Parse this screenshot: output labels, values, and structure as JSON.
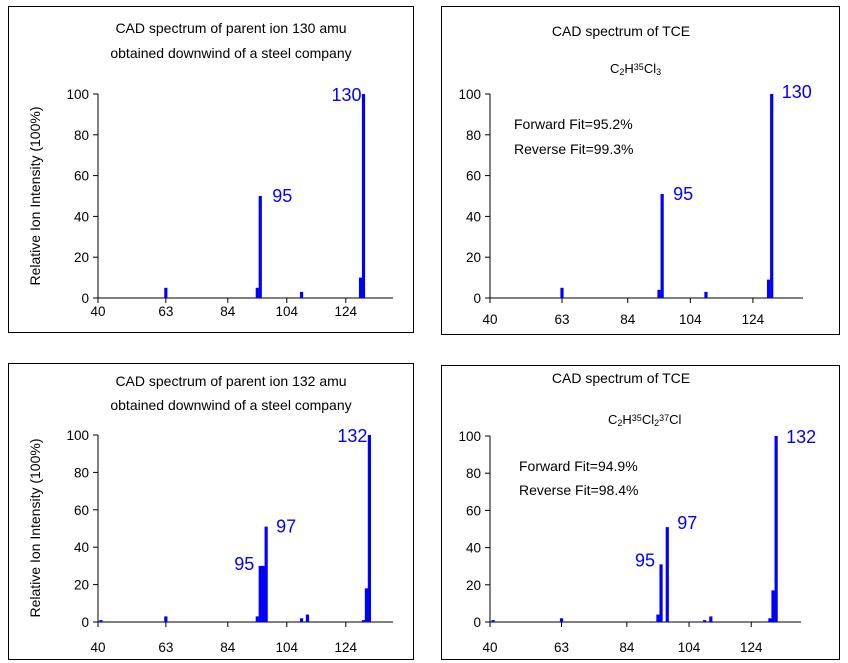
{
  "colors": {
    "bar": "#0000ff",
    "peak_label": "#0000ff",
    "axis": "#000000"
  },
  "chart_data": [
    {
      "type": "bar",
      "title": "CAD spectrum of parent ion 130 amu obtained downwind of a steel company",
      "title_lines": [
        "CAD spectrum of parent ion 130 amu",
        "obtained downwind of a steel company"
      ],
      "ylabel": "Relative Ion Intensity (100%)",
      "xlim": [
        40,
        140
      ],
      "ylim": [
        0,
        100
      ],
      "xticks": [
        40,
        63,
        84,
        104,
        124
      ],
      "yticks": [
        0,
        20,
        40,
        60,
        80,
        100
      ],
      "bars": [
        {
          "x": 63,
          "y": 5
        },
        {
          "x": 94,
          "y": 5
        },
        {
          "x": 95,
          "y": 50
        },
        {
          "x": 109,
          "y": 3
        },
        {
          "x": 129,
          "y": 10
        },
        {
          "x": 130,
          "y": 100
        }
      ],
      "peak_labels": [
        {
          "text": "130",
          "x": 130,
          "y": 100
        },
        {
          "text": "95",
          "x": 95,
          "y": 50
        }
      ]
    },
    {
      "type": "bar",
      "title": "CAD spectrum of TCE",
      "formula": {
        "parts": [
          [
            "C",
            ""
          ],
          [
            "2",
            "sub"
          ],
          [
            "H",
            ""
          ],
          [
            "35",
            "sup"
          ],
          [
            "Cl",
            ""
          ],
          [
            "3",
            "sub"
          ]
        ]
      },
      "annotations": [
        "Forward Fit=95.2%",
        "Reverse Fit=99.3%"
      ],
      "xlim": [
        40,
        140
      ],
      "ylim": [
        0,
        100
      ],
      "xticks": [
        40,
        63,
        84,
        104,
        124
      ],
      "yticks": [
        0,
        20,
        40,
        60,
        80,
        100
      ],
      "bars": [
        {
          "x": 63,
          "y": 5
        },
        {
          "x": 94,
          "y": 4
        },
        {
          "x": 95,
          "y": 51
        },
        {
          "x": 109,
          "y": 3
        },
        {
          "x": 129,
          "y": 9
        },
        {
          "x": 130,
          "y": 100
        }
      ],
      "peak_labels": [
        {
          "text": "130",
          "x": 130,
          "y": 100
        },
        {
          "text": "95",
          "x": 95,
          "y": 51
        }
      ]
    },
    {
      "type": "bar",
      "title": "CAD spectrum of parent ion 132 amu obtained downwind of a steel company",
      "title_lines": [
        "CAD spectrum of parent ion 132 amu",
        "obtained downwind of a steel company"
      ],
      "ylabel": "Relative Ion Intensity (100%)",
      "xlim": [
        40,
        140
      ],
      "ylim": [
        0,
        100
      ],
      "xticks": [
        40,
        63,
        84,
        104,
        124
      ],
      "yticks": [
        0,
        20,
        40,
        60,
        80,
        100
      ],
      "bars": [
        {
          "x": 41,
          "y": 1
        },
        {
          "x": 63,
          "y": 3
        },
        {
          "x": 94,
          "y": 3
        },
        {
          "x": 95,
          "y": 30
        },
        {
          "x": 96,
          "y": 30
        },
        {
          "x": 97,
          "y": 51
        },
        {
          "x": 109,
          "y": 2
        },
        {
          "x": 111,
          "y": 4
        },
        {
          "x": 130,
          "y": 1
        },
        {
          "x": 131,
          "y": 18
        },
        {
          "x": 132,
          "y": 100
        }
      ],
      "peak_labels": [
        {
          "text": "132",
          "x": 132,
          "y": 100
        },
        {
          "text": "95",
          "x": 95,
          "y": 30
        },
        {
          "text": "97",
          "x": 97,
          "y": 51
        }
      ]
    },
    {
      "type": "bar",
      "title": "CAD spectrum of TCE",
      "formula": {
        "parts": [
          [
            "C",
            ""
          ],
          [
            "2",
            "sub"
          ],
          [
            "H",
            ""
          ],
          [
            "35",
            "sup"
          ],
          [
            "Cl",
            ""
          ],
          [
            "2",
            "sub"
          ],
          [
            "37",
            "sup"
          ],
          [
            "Cl",
            ""
          ]
        ]
      },
      "annotations": [
        "Forward Fit=94.9%",
        "Reverse Fit=98.4%"
      ],
      "xlim": [
        40,
        140
      ],
      "ylim": [
        0,
        100
      ],
      "xticks": [
        40,
        63,
        84,
        104,
        124
      ],
      "yticks": [
        0,
        20,
        40,
        60,
        80,
        100
      ],
      "bars": [
        {
          "x": 41,
          "y": 1
        },
        {
          "x": 63,
          "y": 2
        },
        {
          "x": 94,
          "y": 4
        },
        {
          "x": 95,
          "y": 31
        },
        {
          "x": 97,
          "y": 51
        },
        {
          "x": 109,
          "y": 1
        },
        {
          "x": 111,
          "y": 3
        },
        {
          "x": 130,
          "y": 2
        },
        {
          "x": 131,
          "y": 17
        },
        {
          "x": 132,
          "y": 100
        }
      ],
      "peak_labels": [
        {
          "text": "132",
          "x": 132,
          "y": 100
        },
        {
          "text": "95",
          "x": 95,
          "y": 31
        },
        {
          "text": "97",
          "x": 97,
          "y": 51
        }
      ]
    }
  ]
}
